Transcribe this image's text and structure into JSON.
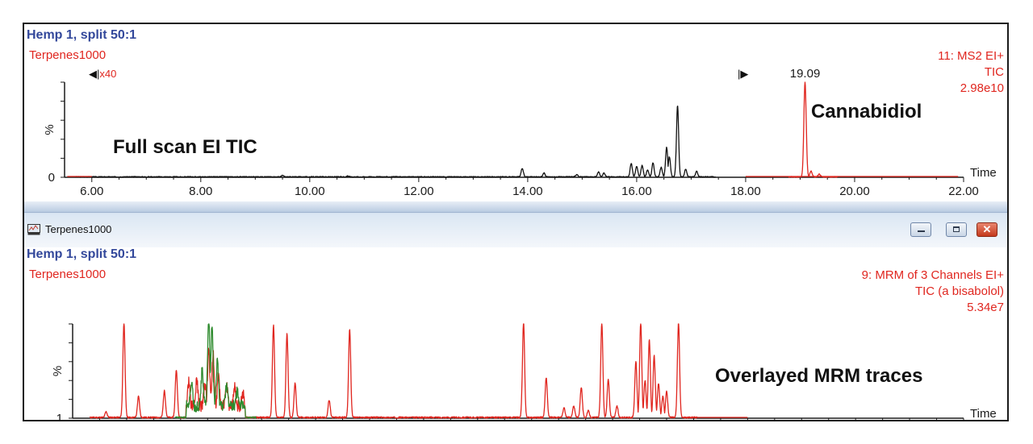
{
  "charts": [
    {
      "header": {
        "title": "Hemp 1, split 50:1",
        "sample": "Terpenes1000"
      },
      "info": [
        "11: MS2 EI+",
        "TIC",
        "2.98e10"
      ],
      "annotations": {
        "zoom": "x40",
        "peak_label": "19.09",
        "compound": "Cannabidiol",
        "description": "Full scan EI TIC"
      }
    },
    {
      "header": {
        "title": "Hemp 1, split 50:1",
        "sample": "Terpenes1000"
      },
      "info": [
        "9: MRM of 3 Channels EI+",
        "TIC (a bisabolol)",
        "5.34e7"
      ],
      "annotations": {
        "description": "Overlayed MRM traces"
      }
    }
  ],
  "window": {
    "title": "Terpenes1000",
    "buttons": {
      "minimize": "minimize",
      "maximize": "maximize",
      "close": "close"
    }
  },
  "colors": {
    "title_blue": "#33489b",
    "trace_red": "#e0261f",
    "trace_black": "#111111",
    "trace_green": "#2e8b2e"
  },
  "chart_data": [
    {
      "type": "line",
      "xlabel": "Time",
      "ylabel": "%",
      "xlim": [
        5.5,
        22.0
      ],
      "ylim": [
        0,
        100
      ],
      "x_ticks": [
        "6.00",
        "8.00",
        "10.00",
        "12.00",
        "14.00",
        "16.00",
        "18.00",
        "20.00",
        "22.00"
      ],
      "y_ticks": [
        "0"
      ],
      "series": [
        {
          "color": "#111111",
          "x": [
            6.0,
            9.5,
            10.7,
            13.9,
            14.3,
            14.9,
            15.3,
            15.4,
            15.9,
            16.0,
            16.1,
            16.2,
            16.3,
            16.45,
            16.55,
            16.6,
            16.75,
            16.9,
            17.1
          ],
          "y": [
            0,
            1.5,
            1,
            9,
            4,
            2.5,
            5,
            4,
            14,
            11,
            12,
            7.5,
            15,
            10,
            31,
            21,
            75,
            8,
            6
          ]
        },
        {
          "color": "#e0261f",
          "x": [
            19.09,
            19.2,
            19.35
          ],
          "y": [
            100,
            6,
            3
          ]
        }
      ]
    },
    {
      "type": "line",
      "xlabel": "Time",
      "ylabel": "%",
      "xlim": [
        5.5,
        22.0
      ],
      "ylim": [
        1,
        100
      ],
      "x_ticks": [
        "6.00",
        "8.00",
        "10.00",
        "12.00",
        "14.00",
        "16.00",
        "18.00",
        "20.00",
        "22.00"
      ],
      "y_ticks": [
        "1"
      ],
      "series": [
        {
          "color": "#e0261f",
          "x": [
            6.12,
            6.45,
            6.72,
            7.2,
            7.42,
            7.65,
            7.8,
            7.95,
            8.02,
            8.1,
            8.2,
            8.35,
            8.5,
            8.65,
            9.22,
            9.47,
            9.62,
            10.25,
            10.63,
            13.85,
            14.27,
            14.6,
            14.78,
            14.92,
            15.05,
            15.3,
            15.42,
            15.58,
            15.93,
            16.02,
            16.1,
            16.18,
            16.27,
            16.35,
            16.43,
            16.5,
            16.72
          ],
          "y": [
            6,
            100,
            22,
            28,
            50,
            25,
            27,
            23,
            60,
            55,
            33,
            22,
            19,
            14,
            97,
            88,
            36,
            18,
            93,
            100,
            42,
            10,
            12,
            32,
            7,
            100,
            40,
            12,
            59,
            100,
            39,
            82,
            65,
            36,
            22,
            28,
            100
          ]
        },
        {
          "color": "#2e8b2e",
          "x": [
            7.7,
            7.9,
            8.02,
            8.08,
            8.18,
            8.35,
            8.55
          ],
          "y": [
            25,
            38,
            100,
            85,
            48,
            22,
            14
          ]
        }
      ]
    }
  ]
}
